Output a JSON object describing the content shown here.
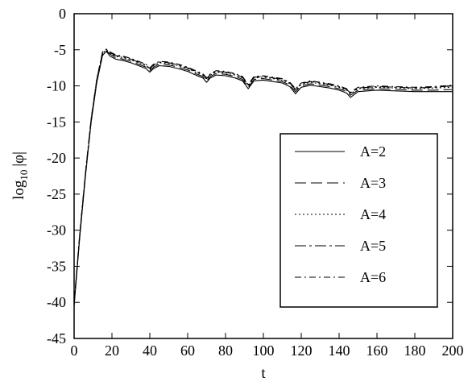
{
  "chart_data": {
    "type": "line",
    "title": "",
    "xlabel": "t",
    "ylabel": "log10 |φ|",
    "ylabel_base": "log",
    "ylabel_sub": "10",
    "ylabel_rest": "|φ|",
    "xlim": [
      0,
      200
    ],
    "ylim": [
      -45,
      0
    ],
    "xticks": [
      0,
      20,
      40,
      60,
      80,
      100,
      120,
      140,
      160,
      180,
      200
    ],
    "yticks": [
      0,
      -5,
      -10,
      -15,
      -20,
      -25,
      -30,
      -35,
      -40,
      -45
    ],
    "grid": false,
    "legend_position": "right",
    "series": [
      {
        "name": "A=2",
        "dash": "",
        "x": [
          0,
          3,
          6,
          9,
          12,
          15,
          17,
          19,
          22,
          26,
          30,
          35,
          38,
          40,
          42,
          45,
          50,
          55,
          60,
          65,
          68,
          70,
          72,
          75,
          80,
          85,
          89,
          92,
          95,
          100,
          105,
          110,
          114,
          117,
          120,
          125,
          130,
          135,
          140,
          144,
          146,
          150,
          160,
          170,
          180,
          190,
          200
        ],
        "y": [
          -40.5,
          -31,
          -22.5,
          -15,
          -9.5,
          -5.8,
          -5.2,
          -5.9,
          -6.3,
          -6.5,
          -6.8,
          -7.3,
          -7.6,
          -8.1,
          -7.6,
          -7.2,
          -7.3,
          -7.6,
          -8.0,
          -8.6,
          -8.9,
          -9.5,
          -8.9,
          -8.5,
          -8.6,
          -8.9,
          -9.3,
          -10.4,
          -9.3,
          -9.2,
          -9.4,
          -9.6,
          -10.1,
          -11.1,
          -10.2,
          -9.9,
          -10.1,
          -10.3,
          -10.6,
          -11.0,
          -11.6,
          -10.8,
          -10.6,
          -10.7,
          -10.8,
          -10.8,
          -10.8
        ]
      },
      {
        "name": "A=3",
        "dash": "14,6",
        "x": [
          0,
          3,
          6,
          9,
          12,
          15,
          17,
          19,
          22,
          26,
          30,
          35,
          38,
          40,
          42,
          45,
          50,
          55,
          60,
          65,
          68,
          70,
          72,
          75,
          80,
          85,
          89,
          92,
          95,
          100,
          105,
          110,
          114,
          117,
          120,
          125,
          130,
          135,
          140,
          144,
          146,
          150,
          160,
          170,
          180,
          190,
          200
        ],
        "y": [
          -40.3,
          -30.8,
          -22.3,
          -14.8,
          -9.3,
          -5.6,
          -5.1,
          -5.6,
          -6.1,
          -6.3,
          -6.6,
          -7.1,
          -7.4,
          -7.9,
          -7.4,
          -7.0,
          -7.1,
          -7.4,
          -7.8,
          -8.4,
          -8.7,
          -9.3,
          -8.7,
          -8.3,
          -8.4,
          -8.7,
          -9.1,
          -10.2,
          -9.1,
          -9.0,
          -9.2,
          -9.4,
          -9.9,
          -10.8,
          -10.0,
          -9.7,
          -9.9,
          -10.1,
          -10.4,
          -10.8,
          -11.3,
          -10.6,
          -10.4,
          -10.5,
          -10.6,
          -10.6,
          -10.5
        ]
      },
      {
        "name": "A=4",
        "dash": "2,3",
        "x": [
          0,
          3,
          6,
          9,
          12,
          15,
          17,
          19,
          22,
          26,
          30,
          35,
          38,
          40,
          42,
          45,
          50,
          55,
          60,
          65,
          68,
          70,
          72,
          75,
          80,
          85,
          89,
          92,
          95,
          100,
          105,
          110,
          114,
          117,
          120,
          125,
          130,
          135,
          140,
          144,
          146,
          150,
          160,
          170,
          180,
          190,
          200
        ],
        "y": [
          -40.2,
          -30.7,
          -22.2,
          -14.7,
          -9.2,
          -5.5,
          -5.0,
          -5.5,
          -5.9,
          -6.1,
          -6.4,
          -6.9,
          -7.2,
          -7.7,
          -7.2,
          -6.8,
          -6.9,
          -7.2,
          -7.6,
          -8.2,
          -8.5,
          -9.1,
          -8.5,
          -8.1,
          -8.2,
          -8.5,
          -8.9,
          -10.0,
          -8.9,
          -8.8,
          -9.0,
          -9.2,
          -9.7,
          -10.6,
          -9.8,
          -9.5,
          -9.7,
          -9.9,
          -10.2,
          -10.6,
          -11.1,
          -10.4,
          -10.2,
          -10.3,
          -10.4,
          -10.3,
          -10.2
        ]
      },
      {
        "name": "A=5",
        "dash": "14,4,3,4",
        "x": [
          0,
          3,
          6,
          9,
          12,
          15,
          17,
          19,
          22,
          26,
          30,
          35,
          38,
          40,
          42,
          45,
          50,
          55,
          60,
          65,
          68,
          70,
          72,
          75,
          80,
          85,
          89,
          92,
          95,
          100,
          105,
          110,
          114,
          117,
          120,
          125,
          130,
          135,
          140,
          144,
          146,
          150,
          160,
          170,
          180,
          190,
          200
        ],
        "y": [
          -40.1,
          -30.6,
          -22.1,
          -14.6,
          -9.1,
          -5.4,
          -4.95,
          -5.4,
          -5.8,
          -6.0,
          -6.3,
          -6.8,
          -7.1,
          -7.6,
          -7.1,
          -6.7,
          -6.8,
          -7.1,
          -7.5,
          -8.1,
          -8.4,
          -9.0,
          -8.4,
          -8.0,
          -8.1,
          -8.4,
          -8.8,
          -9.9,
          -8.8,
          -8.7,
          -8.9,
          -9.1,
          -9.6,
          -10.5,
          -9.7,
          -9.4,
          -9.6,
          -9.8,
          -10.1,
          -10.5,
          -11.0,
          -10.3,
          -10.1,
          -10.2,
          -10.3,
          -10.2,
          -10.0
        ]
      },
      {
        "name": "A=6",
        "dash": "8,4,2,4",
        "x": [
          0,
          3,
          6,
          9,
          12,
          15,
          17,
          19,
          22,
          26,
          30,
          35,
          38,
          40,
          42,
          45,
          50,
          55,
          60,
          65,
          68,
          70,
          72,
          75,
          80,
          85,
          89,
          92,
          95,
          100,
          105,
          110,
          114,
          117,
          120,
          125,
          130,
          135,
          140,
          144,
          146,
          150,
          160,
          170,
          180,
          190,
          200
        ],
        "y": [
          -40.0,
          -30.5,
          -22.0,
          -14.5,
          -9.0,
          -5.3,
          -4.9,
          -5.3,
          -5.7,
          -5.9,
          -6.2,
          -6.7,
          -7.0,
          -7.5,
          -7.0,
          -6.6,
          -6.7,
          -7.0,
          -7.4,
          -8.0,
          -8.3,
          -8.9,
          -8.3,
          -7.9,
          -8.0,
          -8.3,
          -8.7,
          -9.8,
          -8.7,
          -8.6,
          -8.8,
          -9.0,
          -9.5,
          -10.4,
          -9.6,
          -9.3,
          -9.5,
          -9.7,
          -10.0,
          -10.4,
          -10.9,
          -10.2,
          -10.0,
          -10.1,
          -10.2,
          -10.1,
          -9.9
        ]
      }
    ]
  }
}
